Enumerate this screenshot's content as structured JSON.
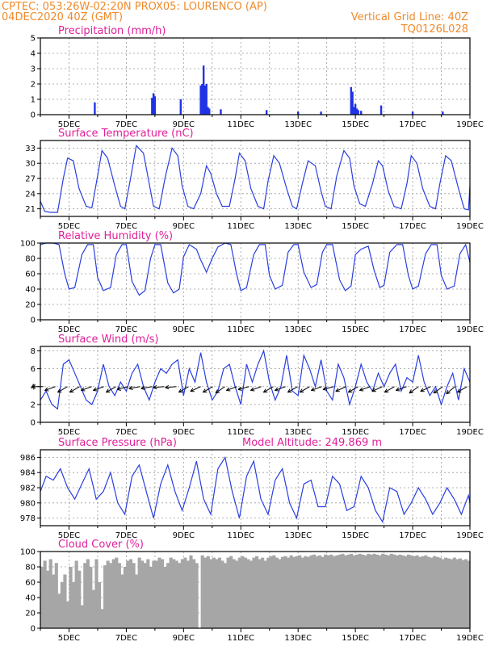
{
  "header": {
    "line1_left": "CPTEC:    053:26W-02:20N    PROX05: LOURENCO (AP)",
    "line2_left": "04DEC2020 40Z (GMT)",
    "line2_right": "Vertical Grid Line: 40Z",
    "line3_right": "TQ0126L028"
  },
  "x_axis": {
    "range_days": [
      4.0,
      19.0
    ],
    "ticks": [
      {
        "day": 5,
        "label": "5DEC"
      },
      {
        "day": 7,
        "label": "7DEC"
      },
      {
        "day": 9,
        "label": "9DEC"
      },
      {
        "day": 11,
        "label": "11DEC"
      },
      {
        "day": 13,
        "label": "13DEC"
      },
      {
        "day": 15,
        "label": "15DEC"
      },
      {
        "day": 17,
        "label": "17DEC"
      },
      {
        "day": 19,
        "label": "19DEC"
      }
    ]
  },
  "chart_data": [
    {
      "id": "precip",
      "type": "bar",
      "title": "Precipitation (mm/h)",
      "ylim": [
        0,
        5
      ],
      "yticks": [
        0,
        1,
        2,
        3,
        4,
        5
      ],
      "x": [
        5.9,
        7.9,
        7.95,
        8.0,
        8.9,
        9.6,
        9.65,
        9.7,
        9.75,
        9.8,
        9.85,
        9.9,
        10.3,
        11.9,
        13.0,
        13.8,
        14.85,
        14.9,
        14.95,
        15.0,
        15.05,
        15.1,
        15.2,
        15.9,
        17.0,
        18.05
      ],
      "values": [
        0.8,
        1.1,
        1.4,
        1.2,
        1.0,
        1.9,
        2.0,
        3.2,
        1.9,
        2.0,
        0.5,
        0.4,
        0.35,
        0.3,
        0.2,
        0.2,
        1.8,
        1.5,
        0.5,
        0.7,
        0.4,
        0.3,
        0.25,
        0.6,
        0.2,
        0.2
      ]
    },
    {
      "id": "temp",
      "type": "line",
      "title": "Surface Temperature (nC)",
      "ylim": [
        19.5,
        34.5
      ],
      "yticks": [
        21,
        24,
        27,
        30,
        33
      ],
      "x": [
        4.0,
        4.15,
        4.35,
        4.6,
        4.8,
        4.95,
        5.15,
        5.35,
        5.6,
        5.8,
        5.95,
        6.15,
        6.35,
        6.6,
        6.8,
        6.95,
        7.15,
        7.35,
        7.6,
        7.8,
        7.95,
        8.15,
        8.35,
        8.6,
        8.8,
        8.95,
        9.15,
        9.35,
        9.6,
        9.8,
        9.95,
        10.15,
        10.35,
        10.6,
        10.8,
        10.95,
        11.15,
        11.35,
        11.6,
        11.8,
        11.95,
        12.15,
        12.35,
        12.6,
        12.8,
        12.95,
        13.15,
        13.35,
        13.6,
        13.8,
        13.95,
        14.15,
        14.35,
        14.6,
        14.8,
        14.95,
        15.15,
        15.35,
        15.6,
        15.8,
        15.95,
        16.15,
        16.35,
        16.6,
        16.8,
        16.95,
        17.15,
        17.35,
        17.6,
        17.8,
        17.95,
        18.15,
        18.35,
        18.6,
        18.8,
        18.95,
        19.0
      ],
      "values": [
        22.5,
        20.5,
        20.3,
        20.3,
        27.0,
        31.0,
        30.5,
        25.0,
        21.5,
        21.2,
        26.0,
        32.5,
        31.0,
        25.5,
        21.5,
        21.0,
        27.0,
        33.5,
        32.0,
        26.0,
        21.5,
        21.0,
        27.0,
        33.0,
        31.5,
        25.5,
        21.5,
        21.0,
        24.0,
        29.5,
        28.0,
        24.0,
        21.5,
        21.5,
        27.0,
        32.0,
        30.5,
        25.0,
        21.5,
        21.0,
        26.5,
        31.5,
        30.0,
        25.0,
        21.5,
        21.0,
        26.0,
        30.5,
        29.5,
        24.5,
        21.5,
        21.0,
        27.5,
        32.5,
        31.0,
        25.5,
        22.0,
        21.5,
        26.0,
        30.5,
        29.5,
        24.5,
        21.5,
        21.0,
        26.0,
        31.5,
        30.0,
        25.0,
        21.5,
        21.0,
        26.0,
        31.5,
        30.5,
        25.0,
        21.0,
        20.8,
        25.5
      ]
    },
    {
      "id": "rh",
      "type": "line",
      "title": "Relative Humidity (%)",
      "ylim": [
        0,
        100
      ],
      "yticks": [
        0,
        20,
        40,
        60,
        80,
        100
      ],
      "x": [
        4.0,
        4.2,
        4.45,
        4.65,
        4.85,
        5.0,
        5.2,
        5.45,
        5.65,
        5.85,
        6.0,
        6.2,
        6.45,
        6.65,
        6.85,
        7.0,
        7.2,
        7.45,
        7.65,
        7.85,
        8.0,
        8.2,
        8.45,
        8.65,
        8.85,
        9.0,
        9.2,
        9.45,
        9.6,
        9.8,
        10.0,
        10.2,
        10.45,
        10.65,
        10.85,
        11.0,
        11.2,
        11.45,
        11.65,
        11.85,
        12.0,
        12.2,
        12.45,
        12.65,
        12.85,
        13.0,
        13.2,
        13.45,
        13.65,
        13.85,
        14.0,
        14.2,
        14.45,
        14.65,
        14.85,
        15.0,
        15.2,
        15.45,
        15.65,
        15.85,
        16.0,
        16.2,
        16.45,
        16.65,
        16.85,
        17.0,
        17.2,
        17.45,
        17.65,
        17.85,
        18.0,
        18.2,
        18.45,
        18.65,
        18.85,
        19.0
      ],
      "values": [
        98,
        100,
        100,
        98,
        60,
        40,
        42,
        85,
        98,
        98,
        55,
        38,
        42,
        85,
        98,
        98,
        50,
        32,
        38,
        80,
        98,
        98,
        48,
        35,
        40,
        82,
        98,
        92,
        78,
        62,
        80,
        95,
        100,
        98,
        60,
        38,
        42,
        85,
        98,
        98,
        58,
        40,
        45,
        88,
        98,
        98,
        62,
        42,
        46,
        88,
        98,
        98,
        52,
        38,
        44,
        85,
        92,
        96,
        65,
        42,
        45,
        88,
        98,
        98,
        58,
        40,
        44,
        86,
        98,
        98,
        58,
        40,
        44,
        86,
        98,
        75
      ]
    },
    {
      "id": "wind",
      "type": "line",
      "title": "Surface Wind (m/s)",
      "ylim": [
        0,
        8.5
      ],
      "yticks": [
        0,
        2,
        4,
        6,
        8
      ],
      "x": [
        4.0,
        4.2,
        4.4,
        4.6,
        4.8,
        5.0,
        5.2,
        5.4,
        5.6,
        5.8,
        6.0,
        6.2,
        6.4,
        6.6,
        6.8,
        7.0,
        7.2,
        7.4,
        7.6,
        7.8,
        8.0,
        8.2,
        8.4,
        8.6,
        8.8,
        9.0,
        9.2,
        9.4,
        9.6,
        9.8,
        10.0,
        10.2,
        10.4,
        10.6,
        10.8,
        11.0,
        11.2,
        11.4,
        11.6,
        11.8,
        12.0,
        12.2,
        12.4,
        12.6,
        12.8,
        13.0,
        13.2,
        13.4,
        13.6,
        13.8,
        14.0,
        14.2,
        14.4,
        14.6,
        14.8,
        15.0,
        15.2,
        15.4,
        15.6,
        15.8,
        16.0,
        16.2,
        16.4,
        16.6,
        16.8,
        17.0,
        17.2,
        17.4,
        17.6,
        17.8,
        18.0,
        18.2,
        18.4,
        18.6,
        18.8,
        19.0
      ],
      "values": [
        2.5,
        3.5,
        2.0,
        1.5,
        6.5,
        7.0,
        5.5,
        4.0,
        2.5,
        2.0,
        3.5,
        6.5,
        4.0,
        3.0,
        4.5,
        3.5,
        5.5,
        6.5,
        4.0,
        2.5,
        4.5,
        6.0,
        5.5,
        6.5,
        7.0,
        3.0,
        6.0,
        4.5,
        7.8,
        4.5,
        2.5,
        3.5,
        6.0,
        6.5,
        4.0,
        2.0,
        6.5,
        4.5,
        6.5,
        8.0,
        4.5,
        2.5,
        4.0,
        7.5,
        3.5,
        3.0,
        7.5,
        6.0,
        4.0,
        7.0,
        3.5,
        2.5,
        6.5,
        5.0,
        2.0,
        4.0,
        6.5,
        4.5,
        3.5,
        5.5,
        4.0,
        5.5,
        6.5,
        3.5,
        5.0,
        4.5,
        7.5,
        4.5,
        3.0,
        4.0,
        2.0,
        4.0,
        5.5,
        2.5,
        6.0,
        4.5
      ],
      "arrows_at_ms": 4.0,
      "arrow_angles_deg": [
        180,
        200,
        210,
        210,
        200,
        200,
        210,
        195,
        190,
        190,
        185,
        185,
        210,
        205,
        210,
        215,
        200,
        195,
        200,
        210,
        200,
        210,
        210,
        200,
        195,
        205,
        210,
        200,
        205,
        210,
        200,
        215,
        205,
        215,
        220,
        210
      ]
    },
    {
      "id": "pressure",
      "type": "line",
      "title": "Surface Pressure (hPa)",
      "annotation": "Model Altitude: 249.869  m",
      "ylim": [
        977,
        987
      ],
      "yticks": [
        978,
        980,
        982,
        984,
        986
      ],
      "x": [
        4.0,
        4.2,
        4.45,
        4.7,
        4.95,
        5.2,
        5.45,
        5.7,
        5.95,
        6.2,
        6.45,
        6.7,
        6.95,
        7.2,
        7.45,
        7.7,
        7.95,
        8.2,
        8.45,
        8.7,
        8.95,
        9.2,
        9.45,
        9.7,
        9.95,
        10.2,
        10.45,
        10.7,
        10.95,
        11.2,
        11.45,
        11.7,
        11.95,
        12.2,
        12.45,
        12.7,
        12.95,
        13.2,
        13.45,
        13.7,
        13.95,
        14.2,
        14.45,
        14.7,
        14.95,
        15.2,
        15.45,
        15.7,
        15.95,
        16.2,
        16.45,
        16.7,
        16.95,
        17.2,
        17.45,
        17.7,
        17.95,
        18.2,
        18.45,
        18.7,
        18.95,
        19.0
      ],
      "values": [
        981.5,
        983.5,
        983.0,
        984.5,
        982.0,
        980.5,
        982.5,
        984.5,
        980.5,
        981.5,
        984.0,
        980.0,
        978.5,
        983.5,
        985.0,
        981.5,
        978.0,
        982.5,
        985.0,
        981.5,
        979.0,
        982.0,
        985.5,
        980.5,
        978.5,
        984.5,
        986.0,
        981.5,
        978.0,
        983.5,
        985.5,
        980.5,
        978.5,
        983.0,
        984.5,
        980.0,
        978.0,
        982.5,
        983.0,
        979.5,
        979.5,
        983.5,
        982.5,
        979.0,
        979.5,
        983.5,
        982.0,
        979.0,
        977.5,
        982.0,
        981.5,
        978.5,
        980.0,
        982.0,
        980.5,
        978.5,
        980.0,
        982.0,
        980.5,
        978.5,
        981.0,
        980.0
      ]
    },
    {
      "id": "cloud",
      "type": "bar",
      "title": "Cloud Cover (%)",
      "ylim": [
        0,
        100
      ],
      "yticks": [
        0,
        20,
        40,
        60,
        80,
        100
      ],
      "x": [
        4.0,
        4.1,
        4.2,
        4.3,
        4.4,
        4.5,
        4.6,
        4.7,
        4.8,
        4.9,
        5.0,
        5.1,
        5.2,
        5.3,
        5.4,
        5.5,
        5.6,
        5.7,
        5.8,
        5.9,
        6.0,
        6.1,
        6.2,
        6.3,
        6.4,
        6.5,
        6.6,
        6.7,
        6.8,
        6.9,
        7.0,
        7.1,
        7.2,
        7.3,
        7.4,
        7.5,
        7.6,
        7.7,
        7.8,
        7.9,
        8.0,
        8.1,
        8.2,
        8.3,
        8.4,
        8.5,
        8.6,
        8.7,
        8.8,
        8.9,
        9.0,
        9.1,
        9.2,
        9.3,
        9.4,
        9.5,
        9.6,
        9.7,
        9.8,
        9.9,
        10.0,
        10.1,
        10.2,
        10.3,
        10.4,
        10.5,
        10.6,
        10.7,
        10.8,
        10.9,
        11.0,
        11.1,
        11.2,
        11.3,
        11.4,
        11.5,
        11.6,
        11.7,
        11.8,
        11.9,
        12.0,
        12.1,
        12.2,
        12.3,
        12.4,
        12.5,
        12.6,
        12.7,
        12.8,
        12.9,
        13.0,
        13.1,
        13.2,
        13.3,
        13.4,
        13.5,
        13.6,
        13.7,
        13.8,
        13.9,
        14.0,
        14.1,
        14.2,
        14.3,
        14.4,
        14.5,
        14.6,
        14.7,
        14.8,
        14.9,
        15.0,
        15.1,
        15.2,
        15.3,
        15.4,
        15.5,
        15.6,
        15.7,
        15.8,
        15.9,
        16.0,
        16.1,
        16.2,
        16.3,
        16.4,
        16.5,
        16.6,
        16.7,
        16.8,
        16.9,
        17.0,
        17.1,
        17.2,
        17.3,
        17.4,
        17.5,
        17.6,
        17.7,
        17.8,
        17.9,
        18.0,
        18.1,
        18.2,
        18.3,
        18.4,
        18.5,
        18.6,
        18.7,
        18.8,
        18.9
      ],
      "values": [
        80,
        88,
        75,
        90,
        70,
        85,
        45,
        60,
        70,
        35,
        80,
        60,
        88,
        75,
        30,
        85,
        90,
        80,
        50,
        90,
        60,
        25,
        82,
        88,
        85,
        90,
        92,
        85,
        70,
        80,
        88,
        90,
        85,
        70,
        92,
        88,
        85,
        90,
        80,
        88,
        88,
        92,
        90,
        80,
        85,
        92,
        90,
        88,
        85,
        90,
        92,
        88,
        95,
        90,
        85,
        0,
        95,
        92,
        94,
        90,
        92,
        90,
        92,
        88,
        85,
        92,
        94,
        90,
        88,
        92,
        94,
        92,
        90,
        88,
        92,
        94,
        90,
        92,
        88,
        92,
        94,
        95,
        92,
        90,
        93,
        94,
        92,
        95,
        93,
        94,
        95,
        92,
        94,
        93,
        95,
        96,
        94,
        95,
        93,
        96,
        95,
        96,
        94,
        95,
        96,
        97,
        95,
        96,
        97,
        95,
        96,
        97,
        96,
        95,
        97,
        96,
        97,
        96,
        95,
        97,
        96,
        95,
        97,
        96,
        95,
        96,
        95,
        94,
        96,
        95,
        94,
        95,
        93,
        94,
        95,
        93,
        92,
        94,
        93,
        92,
        90,
        92,
        91,
        90,
        92,
        90,
        91,
        89,
        90,
        88
      ]
    }
  ]
}
